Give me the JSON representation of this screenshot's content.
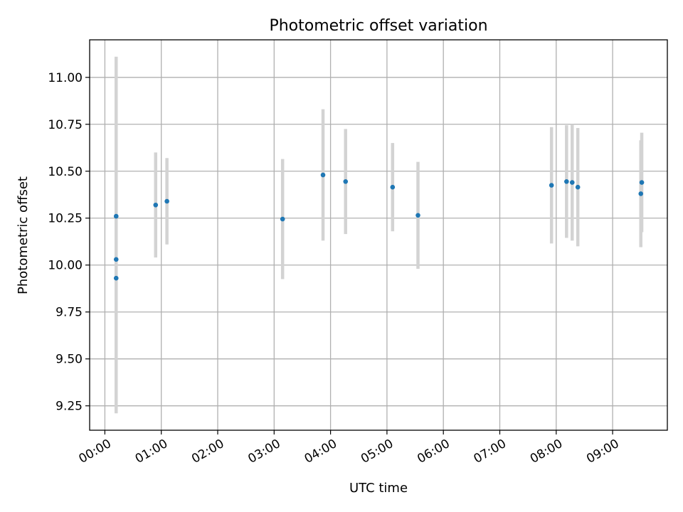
{
  "chart_data": {
    "type": "scatter",
    "title": "Photometric offset variation",
    "xlabel": "UTC time",
    "ylabel": "Photometric offset",
    "x_unit": "hours (UTC)",
    "xlim": [
      -0.27,
      9.97
    ],
    "ylim": [
      9.12,
      11.2
    ],
    "x_ticks": [
      0,
      1,
      2,
      3,
      4,
      5,
      6,
      7,
      8,
      9
    ],
    "x_tick_labels": [
      "00:00",
      "01:00",
      "02:00",
      "03:00",
      "04:00",
      "05:00",
      "06:00",
      "07:00",
      "08:00",
      "09:00"
    ],
    "y_ticks": [
      9.25,
      9.5,
      9.75,
      10.0,
      10.25,
      10.5,
      10.75,
      11.0
    ],
    "y_tick_labels": [
      "9.25",
      "9.50",
      "9.75",
      "10.00",
      "10.25",
      "10.50",
      "10.75",
      "11.00"
    ],
    "grid": true,
    "colors": {
      "points": "#1f77b4",
      "error_bars": "#d3d3d3"
    },
    "series": [
      {
        "points": [
          {
            "x": "00:12",
            "y": 10.26,
            "err": 0.85
          },
          {
            "x": "00:12",
            "y": 10.03,
            "err": 0.62
          },
          {
            "x": "00:12",
            "y": 9.93,
            "err": 0.72
          },
          {
            "x": "00:54",
            "y": 10.32,
            "err": 0.28
          },
          {
            "x": "01:06",
            "y": 10.34,
            "err": 0.23
          },
          {
            "x": "03:09",
            "y": 10.245,
            "err": 0.32
          },
          {
            "x": "03:52",
            "y": 10.48,
            "err": 0.35
          },
          {
            "x": "04:16",
            "y": 10.445,
            "err": 0.28
          },
          {
            "x": "05:06",
            "y": 10.415,
            "err": 0.235
          },
          {
            "x": "05:33",
            "y": 10.265,
            "err": 0.285
          },
          {
            "x": "07:55",
            "y": 10.425,
            "err": 0.31
          },
          {
            "x": "08:11",
            "y": 10.445,
            "err": 0.3
          },
          {
            "x": "08:17",
            "y": 10.44,
            "err": 0.31
          },
          {
            "x": "08:23",
            "y": 10.415,
            "err": 0.315
          },
          {
            "x": "09:30",
            "y": 10.38,
            "err": 0.285
          },
          {
            "x": "09:31",
            "y": 10.44,
            "err": 0.265
          }
        ]
      }
    ]
  }
}
